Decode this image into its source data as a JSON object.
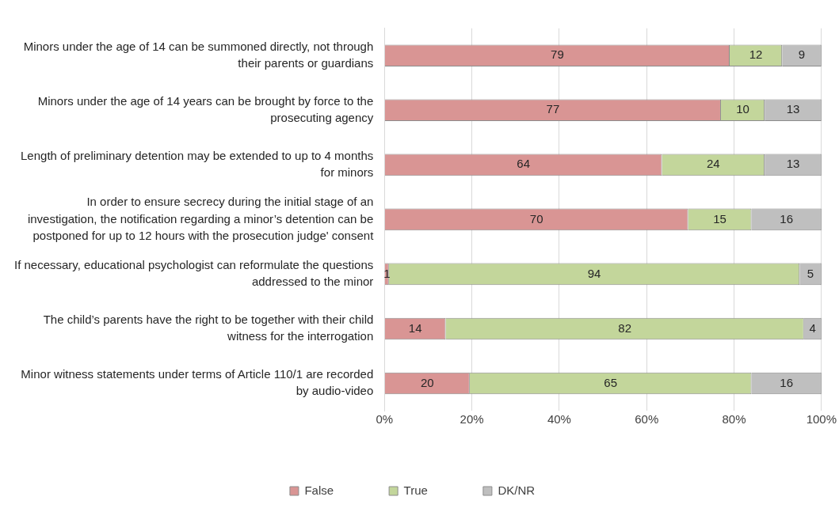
{
  "chart_data": {
    "type": "bar",
    "orientation": "horizontal",
    "stacked": true,
    "categories": [
      "Minors under the age of 14 can be summoned directly, not through their parents or guardians",
      "Minors under the age of 14 years can be brought by force to the prosecuting agency",
      "Length of preliminary detention may be extended to up to 4 months for minors",
      "In order to ensure secrecy during the initial stage of an investigation, the notification regarding a minor’s detention can be postponed for up to 12 hours with the prosecution judge' consent",
      "If necessary, educational psychologist can reformulate the questions addressed to the minor",
      "The child’s parents have the right to be together with their child witness for the interrogation",
      "Minor witness statements under terms of Article 110/1 are recorded by audio-video"
    ],
    "series": [
      {
        "name": "False",
        "color": "#d99594",
        "values": [
          79,
          77,
          63.5,
          69.5,
          1,
          14,
          19.5
        ],
        "value_labels": [
          "79",
          "77",
          "64",
          "70",
          "1",
          "14",
          "20"
        ]
      },
      {
        "name": "True",
        "color": "#c3d69b",
        "values": [
          12,
          10,
          23.5,
          14.5,
          94,
          82,
          64.5
        ],
        "value_labels": [
          "12",
          "10",
          "24",
          "15",
          "94",
          "82",
          "65"
        ]
      },
      {
        "name": "DK/NR",
        "color": "#bfbfbf",
        "values": [
          9,
          13,
          13,
          16,
          5,
          4,
          16
        ],
        "value_labels": [
          "9",
          "13",
          "13",
          "16",
          "5",
          "4",
          "16"
        ]
      }
    ],
    "xlim": [
      0,
      100
    ],
    "xticks": [
      {
        "value": 0,
        "label": "0%"
      },
      {
        "value": 20,
        "label": "20%"
      },
      {
        "value": 40,
        "label": "40%"
      },
      {
        "value": 60,
        "label": "60%"
      },
      {
        "value": 80,
        "label": "80%"
      },
      {
        "value": 100,
        "label": "100%"
      }
    ],
    "grid": "x",
    "legend": "bottom"
  }
}
